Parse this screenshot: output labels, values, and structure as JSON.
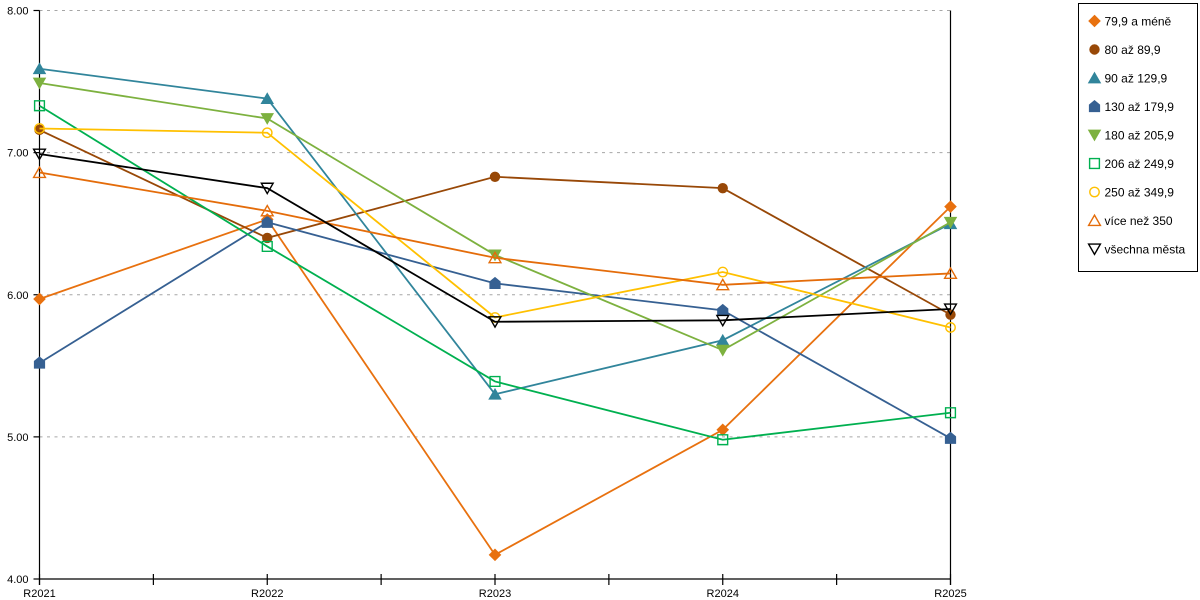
{
  "chart_data": {
    "type": "line",
    "title": "",
    "xlabel": "",
    "ylabel": "",
    "categories": [
      "R2021",
      "R2022",
      "R2023",
      "R2024",
      "R2025"
    ],
    "series": [
      {
        "name": "79,9 a méně",
        "color": "#E8710F",
        "marker": "diamond",
        "marker_fill": "solid",
        "values": [
          5.97,
          6.53,
          4.17,
          5.05,
          6.62
        ]
      },
      {
        "name": "80 až 89,9",
        "color": "#984807",
        "marker": "circle",
        "marker_fill": "solid",
        "values": [
          7.16,
          6.4,
          6.83,
          6.75,
          5.86
        ]
      },
      {
        "name": "90 až 129,9",
        "color": "#31859B",
        "marker": "triangle-up",
        "marker_fill": "solid",
        "values": [
          7.59,
          7.38,
          5.3,
          5.68,
          6.5
        ]
      },
      {
        "name": "130 až 179,9",
        "color": "#366092",
        "marker": "pentagon",
        "marker_fill": "solid",
        "values": [
          5.52,
          6.51,
          6.08,
          5.89,
          4.99
        ]
      },
      {
        "name": "180 až 205,9",
        "color": "#7DB13F",
        "marker": "triangle-down",
        "marker_fill": "solid",
        "values": [
          7.49,
          7.24,
          6.28,
          5.61,
          6.51
        ]
      },
      {
        "name": "206 až 249,9",
        "color": "#00B050",
        "marker": "square",
        "marker_fill": "open",
        "values": [
          7.33,
          6.34,
          5.39,
          4.98,
          5.17
        ]
      },
      {
        "name": "250 až 349,9",
        "color": "#FFC000",
        "marker": "circle",
        "marker_fill": "open",
        "values": [
          7.17,
          7.14,
          5.84,
          6.16,
          5.77
        ]
      },
      {
        "name": "více než 350",
        "color": "#E46C0A",
        "marker": "triangle-up",
        "marker_fill": "open",
        "values": [
          6.86,
          6.59,
          6.26,
          6.07,
          6.15
        ]
      },
      {
        "name": "všechna města",
        "color": "#000000",
        "marker": "triangle-down",
        "marker_fill": "open",
        "values": [
          6.99,
          6.75,
          5.81,
          5.82,
          5.9
        ]
      }
    ],
    "ylim": [
      4,
      8
    ],
    "ytick_step": 1,
    "ytick_labels": [
      "4.00",
      "5.00",
      "6.00",
      "7.00",
      "8.00"
    ],
    "grid": "horizontal-dotted",
    "legend_position": "right"
  },
  "colors": {
    "background": "#FFFFFF",
    "axis": "#000000",
    "grid": "#A6A6A6",
    "text": "#000000",
    "legend_border": "#000000",
    "legend_background": "#FFFFFF"
  }
}
